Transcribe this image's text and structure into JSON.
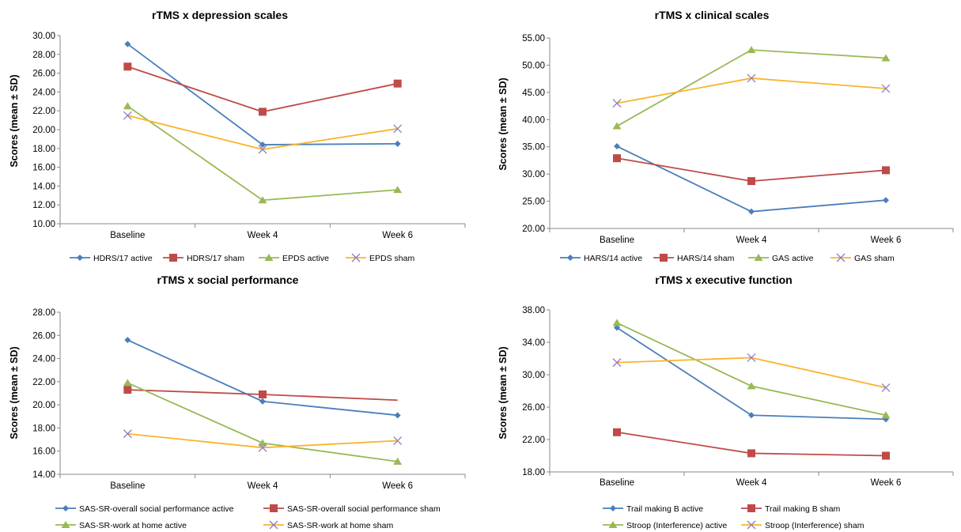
{
  "chart_data": [
    {
      "type": "line",
      "title": "rTMS x depression scales",
      "ylabel": "Scores (mean ± SD)",
      "categories": [
        "Baseline",
        "Week 4",
        "Week 6"
      ],
      "ylim": [
        10,
        30
      ],
      "ystep": 2,
      "ytick_decimals": 2,
      "grid": false,
      "legend_position": "bottom",
      "series": [
        {
          "name": "HDRS/17 active",
          "values": [
            29.1,
            18.4,
            18.5
          ],
          "color": "#4a7ebb",
          "marker": "diamond"
        },
        {
          "name": "HDRS/17 sham",
          "values": [
            26.7,
            21.9,
            24.9
          ],
          "color": "#be4b48",
          "marker": "square"
        },
        {
          "name": "EPDS active",
          "values": [
            22.5,
            12.5,
            13.6
          ],
          "color": "#98b954",
          "marker": "triangle"
        },
        {
          "name": "EPDS sham",
          "values": [
            21.5,
            17.9,
            20.1
          ],
          "color": "#f9b42a",
          "marker": "x"
        }
      ]
    },
    {
      "type": "line",
      "title": "rTMS x clinical scales",
      "ylabel": "Scores (mean ± SD)",
      "categories": [
        "Baseline",
        "Week 4",
        "Week 6"
      ],
      "ylim": [
        20,
        55
      ],
      "ystep": 5,
      "ytick_decimals": 2,
      "grid": false,
      "legend_position": "bottom",
      "series": [
        {
          "name": "HARS/14 active",
          "values": [
            35.1,
            23.1,
            25.2
          ],
          "color": "#4a7ebb",
          "marker": "diamond"
        },
        {
          "name": "HARS/14 sham",
          "values": [
            32.9,
            28.7,
            30.7
          ],
          "color": "#be4b48",
          "marker": "square"
        },
        {
          "name": "GAS active",
          "values": [
            38.8,
            52.8,
            51.3
          ],
          "color": "#98b954",
          "marker": "triangle"
        },
        {
          "name": "GAS sham",
          "values": [
            43.0,
            47.6,
            45.7
          ],
          "color": "#f9b42a",
          "marker": "x"
        }
      ]
    },
    {
      "type": "line",
      "title": "rTMS x social performance",
      "ylabel": "Scores (mean ± SD)",
      "categories": [
        "Baseline",
        "Week 4",
        "Week 6"
      ],
      "ylim": [
        14,
        28
      ],
      "ystep": 2,
      "ytick_decimals": 2,
      "grid": false,
      "legend_position": "bottom",
      "series": [
        {
          "name": "SAS-SR-overall social performance active",
          "values": [
            25.6,
            20.3,
            19.1
          ],
          "color": "#4a7ebb",
          "marker": "diamond"
        },
        {
          "name": "SAS-SR-overall social performance sham",
          "values": [
            21.3,
            20.9,
            20.4
          ],
          "color": "#be4b48",
          "marker": "square",
          "hide_last_marker": true
        },
        {
          "name": "SAS-SR-work at home active",
          "values": [
            21.9,
            16.7,
            15.1
          ],
          "color": "#98b954",
          "marker": "triangle"
        },
        {
          "name": "SAS-SR-work at home sham",
          "values": [
            17.5,
            16.3,
            16.9
          ],
          "color": "#f9b42a",
          "marker": "x"
        }
      ]
    },
    {
      "type": "line",
      "title": "rTMS x executive function",
      "ylabel": "Scores (mean ± SD)",
      "categories": [
        "Baseline",
        "Week 4",
        "Week 6"
      ],
      "ylim": [
        18,
        38
      ],
      "ystep": 4,
      "ytick_decimals": 2,
      "grid": false,
      "legend_position": "bottom",
      "series": [
        {
          "name": "Trail making B active",
          "values": [
            35.8,
            25.0,
            24.5
          ],
          "color": "#4a7ebb",
          "marker": "diamond"
        },
        {
          "name": "Trail making B sham",
          "values": [
            22.9,
            20.3,
            20.0
          ],
          "color": "#be4b48",
          "marker": "square"
        },
        {
          "name": "Stroop (Interference) active",
          "values": [
            36.4,
            28.6,
            25.0
          ],
          "color": "#98b954",
          "marker": "triangle"
        },
        {
          "name": "Stroop (Interference) sham",
          "values": [
            31.5,
            32.1,
            28.4
          ],
          "color": "#f9b42a",
          "marker": "x"
        }
      ]
    }
  ]
}
